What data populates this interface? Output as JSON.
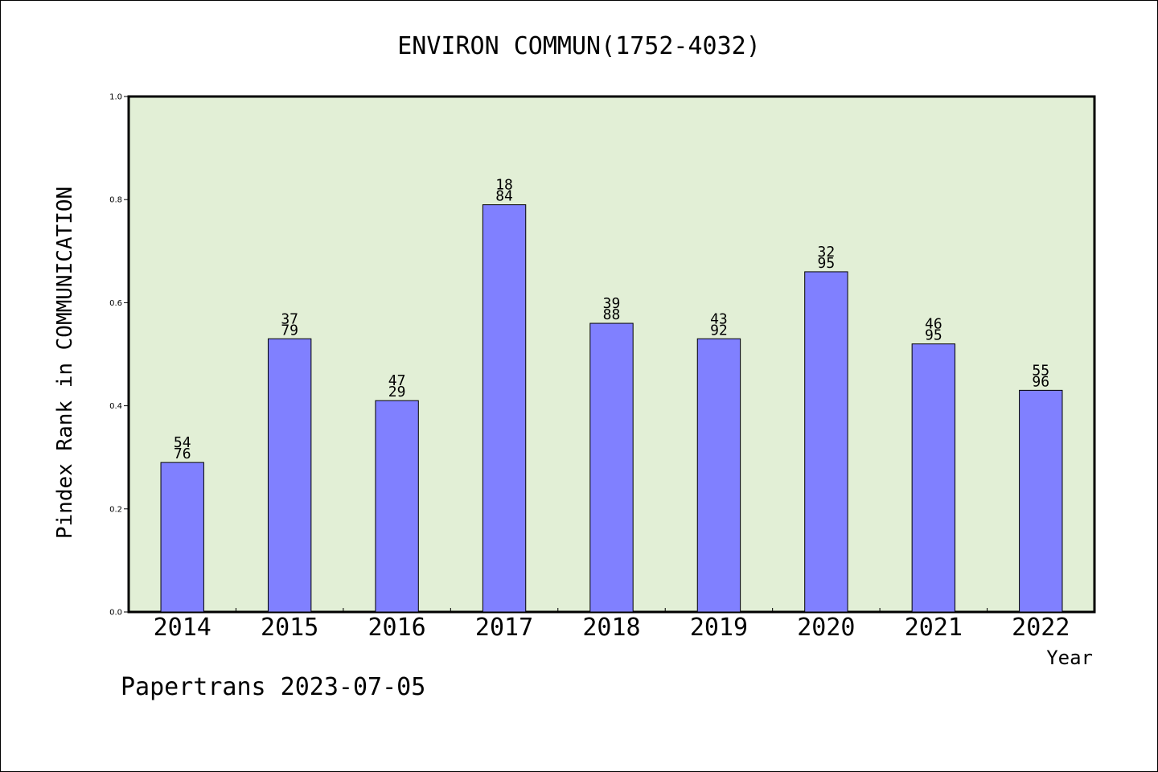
{
  "chart_data": {
    "type": "bar",
    "title": "ENVIRON COMMUN(1752-4032)",
    "xlabel": "Year",
    "ylabel": "Pindex Rank in COMMUNICATION",
    "categories": [
      "2014",
      "2015",
      "2016",
      "2017",
      "2018",
      "2019",
      "2020",
      "2021",
      "2022"
    ],
    "values": [
      0.29,
      0.53,
      0.41,
      0.79,
      0.56,
      0.53,
      0.66,
      0.52,
      0.43
    ],
    "labels_top": [
      "54",
      "37",
      "47",
      "18",
      "39",
      "43",
      "32",
      "46",
      "55"
    ],
    "labels_bottom": [
      "76",
      "79",
      "29",
      "84",
      "88",
      "92",
      "95",
      "95",
      "96"
    ],
    "ylim": [
      0,
      1.0
    ],
    "yticks": [
      "0.0",
      "0.2",
      "0.4",
      "0.6",
      "0.8",
      "1.0"
    ],
    "grid": false,
    "legend": "none",
    "colors": {
      "plot_background": "#e2efd6",
      "bar_fill": "#8080ff",
      "bar_stroke": "#000000"
    }
  },
  "footer": {
    "text": "Papertrans 2023-07-05"
  }
}
